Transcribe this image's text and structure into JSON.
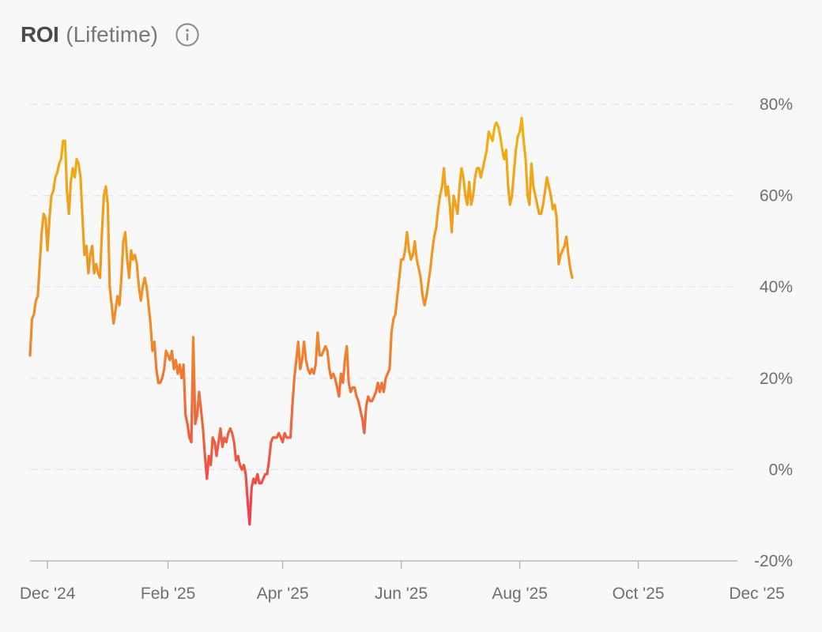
{
  "header": {
    "title": "ROI",
    "subtitle": "(Lifetime)",
    "info_icon": "info-circle-icon"
  },
  "colors": {
    "background": "#f8f8f8",
    "gridline": "#e2e2e4",
    "axis": "#b9b9bd",
    "line_high": "#f0b40f",
    "line_mid": "#ee8a2c",
    "line_low": "#f03c50"
  },
  "chart_data": {
    "type": "line",
    "title": "ROI",
    "subtitle": "(Lifetime)",
    "xlabel": "",
    "ylabel": "",
    "y_axis_side": "right",
    "ylim": [
      -20,
      80
    ],
    "yticks": [
      "80%",
      "60%",
      "40%",
      "20%",
      "0%",
      "-20%"
    ],
    "ytick_values": [
      80,
      60,
      40,
      20,
      0,
      -20
    ],
    "xlim": [
      "2024-11-22",
      "2025-11-21"
    ],
    "xticks": [
      "Dec '24",
      "Feb '25",
      "Apr '25",
      "Jun '25",
      "Aug '25",
      "Oct '25",
      "Dec '25"
    ],
    "xtick_dates": [
      "2024-12-01",
      "2025-02-01",
      "2025-04-01",
      "2025-06-01",
      "2025-08-01",
      "2025-10-01",
      "2025-12-01"
    ],
    "grid": true,
    "legend": "none",
    "series": [
      {
        "values": [
          [
            "2024-11-22",
            25
          ],
          [
            "2024-11-23",
            33
          ],
          [
            "2024-11-24",
            34
          ],
          [
            "2024-11-25",
            37
          ],
          [
            "2024-11-26",
            38
          ],
          [
            "2024-11-27",
            45
          ],
          [
            "2024-11-28",
            52
          ],
          [
            "2024-11-29",
            56
          ],
          [
            "2024-11-30",
            55
          ],
          [
            "2024-12-01",
            48
          ],
          [
            "2024-12-02",
            55
          ],
          [
            "2024-12-03",
            60
          ],
          [
            "2024-12-04",
            61
          ],
          [
            "2024-12-05",
            64
          ],
          [
            "2024-12-06",
            65
          ],
          [
            "2024-12-07",
            67
          ],
          [
            "2024-12-08",
            68
          ],
          [
            "2024-12-09",
            72
          ],
          [
            "2024-12-10",
            72
          ],
          [
            "2024-12-11",
            61
          ],
          [
            "2024-12-12",
            56
          ],
          [
            "2024-12-13",
            63
          ],
          [
            "2024-12-14",
            66
          ],
          [
            "2024-12-15",
            64
          ],
          [
            "2024-12-16",
            68
          ],
          [
            "2024-12-17",
            67
          ],
          [
            "2024-12-18",
            64
          ],
          [
            "2024-12-19",
            55
          ],
          [
            "2024-12-20",
            47
          ],
          [
            "2024-12-21",
            49
          ],
          [
            "2024-12-22",
            43
          ],
          [
            "2024-12-23",
            47
          ],
          [
            "2024-12-24",
            49
          ],
          [
            "2024-12-25",
            43
          ],
          [
            "2024-12-26",
            45
          ],
          [
            "2024-12-27",
            43
          ],
          [
            "2024-12-28",
            42
          ],
          [
            "2024-12-29",
            52
          ],
          [
            "2024-12-30",
            60
          ],
          [
            "2024-12-31",
            62
          ],
          [
            "2025-01-01",
            58
          ],
          [
            "2025-01-02",
            40
          ],
          [
            "2025-01-03",
            36
          ],
          [
            "2025-01-04",
            32
          ],
          [
            "2025-01-05",
            35
          ],
          [
            "2025-01-06",
            38
          ],
          [
            "2025-01-07",
            36
          ],
          [
            "2025-01-08",
            42
          ],
          [
            "2025-01-09",
            50
          ],
          [
            "2025-01-10",
            52
          ],
          [
            "2025-01-11",
            46
          ],
          [
            "2025-01-12",
            42
          ],
          [
            "2025-01-13",
            48
          ],
          [
            "2025-01-14",
            46
          ],
          [
            "2025-01-15",
            47
          ],
          [
            "2025-01-16",
            45
          ],
          [
            "2025-01-17",
            40
          ],
          [
            "2025-01-18",
            37
          ],
          [
            "2025-01-19",
            40
          ],
          [
            "2025-01-20",
            42
          ],
          [
            "2025-01-21",
            40
          ],
          [
            "2025-01-22",
            36
          ],
          [
            "2025-01-23",
            32
          ],
          [
            "2025-01-24",
            26
          ],
          [
            "2025-01-25",
            28
          ],
          [
            "2025-01-26",
            22
          ],
          [
            "2025-01-27",
            19
          ],
          [
            "2025-01-28",
            19
          ],
          [
            "2025-01-29",
            20
          ],
          [
            "2025-01-30",
            22
          ],
          [
            "2025-01-31",
            26
          ],
          [
            "2025-02-01",
            25
          ],
          [
            "2025-02-02",
            24
          ],
          [
            "2025-02-03",
            26
          ],
          [
            "2025-02-04",
            22
          ],
          [
            "2025-02-05",
            24
          ],
          [
            "2025-02-06",
            21
          ],
          [
            "2025-02-07",
            23
          ],
          [
            "2025-02-08",
            20
          ],
          [
            "2025-02-09",
            23
          ],
          [
            "2025-02-10",
            12
          ],
          [
            "2025-02-11",
            10
          ],
          [
            "2025-02-12",
            7
          ],
          [
            "2025-02-13",
            6
          ],
          [
            "2025-02-14",
            29
          ],
          [
            "2025-02-15",
            10
          ],
          [
            "2025-02-16",
            12
          ],
          [
            "2025-02-17",
            17
          ],
          [
            "2025-02-18",
            13
          ],
          [
            "2025-02-19",
            9
          ],
          [
            "2025-02-20",
            3
          ],
          [
            "2025-02-21",
            -2
          ],
          [
            "2025-02-22",
            3
          ],
          [
            "2025-02-23",
            1
          ],
          [
            "2025-02-24",
            7
          ],
          [
            "2025-02-25",
            6
          ],
          [
            "2025-02-26",
            3
          ],
          [
            "2025-02-27",
            6
          ],
          [
            "2025-02-28",
            9
          ],
          [
            "2025-03-01",
            5
          ],
          [
            "2025-03-02",
            7
          ],
          [
            "2025-03-03",
            6
          ],
          [
            "2025-03-04",
            8
          ],
          [
            "2025-03-05",
            9
          ],
          [
            "2025-03-06",
            8
          ],
          [
            "2025-03-07",
            6
          ],
          [
            "2025-03-08",
            2
          ],
          [
            "2025-03-09",
            3
          ],
          [
            "2025-03-10",
            1
          ],
          [
            "2025-03-11",
            0
          ],
          [
            "2025-03-12",
            1
          ],
          [
            "2025-03-13",
            -1
          ],
          [
            "2025-03-14",
            -7
          ],
          [
            "2025-03-15",
            -12
          ],
          [
            "2025-03-16",
            -4
          ],
          [
            "2025-03-17",
            -2
          ],
          [
            "2025-03-18",
            -3
          ],
          [
            "2025-03-19",
            -1
          ],
          [
            "2025-03-20",
            -3
          ],
          [
            "2025-03-21",
            -3
          ],
          [
            "2025-03-22",
            -2
          ],
          [
            "2025-03-23",
            -1
          ],
          [
            "2025-03-24",
            -1
          ],
          [
            "2025-03-25",
            2
          ],
          [
            "2025-03-26",
            6
          ],
          [
            "2025-03-27",
            7
          ],
          [
            "2025-03-28",
            7
          ],
          [
            "2025-03-29",
            7
          ],
          [
            "2025-03-30",
            8
          ],
          [
            "2025-03-31",
            7
          ],
          [
            "2025-04-01",
            6
          ],
          [
            "2025-04-02",
            8
          ],
          [
            "2025-04-03",
            7
          ],
          [
            "2025-04-04",
            7
          ],
          [
            "2025-04-05",
            7
          ],
          [
            "2025-04-06",
            14
          ],
          [
            "2025-04-07",
            20
          ],
          [
            "2025-04-08",
            24
          ],
          [
            "2025-04-09",
            28
          ],
          [
            "2025-04-10",
            22
          ],
          [
            "2025-04-11",
            24
          ],
          [
            "2025-04-12",
            28
          ],
          [
            "2025-04-13",
            24
          ],
          [
            "2025-04-14",
            22
          ],
          [
            "2025-04-15",
            21
          ],
          [
            "2025-04-16",
            22
          ],
          [
            "2025-04-17",
            21
          ],
          [
            "2025-04-18",
            23
          ],
          [
            "2025-04-19",
            30
          ],
          [
            "2025-04-20",
            25
          ],
          [
            "2025-04-21",
            25
          ],
          [
            "2025-04-22",
            26
          ],
          [
            "2025-04-23",
            27
          ],
          [
            "2025-04-24",
            26
          ],
          [
            "2025-04-25",
            22
          ],
          [
            "2025-04-26",
            20
          ],
          [
            "2025-04-27",
            21
          ],
          [
            "2025-04-28",
            20
          ],
          [
            "2025-04-29",
            18
          ],
          [
            "2025-04-30",
            16
          ],
          [
            "2025-05-01",
            21
          ],
          [
            "2025-05-02",
            19
          ],
          [
            "2025-05-03",
            24
          ],
          [
            "2025-05-04",
            27
          ],
          [
            "2025-05-05",
            19
          ],
          [
            "2025-05-06",
            17
          ],
          [
            "2025-05-07",
            18
          ],
          [
            "2025-05-08",
            18
          ],
          [
            "2025-05-09",
            16
          ],
          [
            "2025-05-10",
            15
          ],
          [
            "2025-05-11",
            13
          ],
          [
            "2025-05-12",
            11
          ],
          [
            "2025-05-13",
            8
          ],
          [
            "2025-05-14",
            14
          ],
          [
            "2025-05-15",
            16
          ],
          [
            "2025-05-16",
            15
          ],
          [
            "2025-05-17",
            15
          ],
          [
            "2025-05-18",
            16
          ],
          [
            "2025-05-19",
            17
          ],
          [
            "2025-05-20",
            19
          ],
          [
            "2025-05-21",
            17
          ],
          [
            "2025-05-22",
            19
          ],
          [
            "2025-05-23",
            17
          ],
          [
            "2025-05-24",
            20
          ],
          [
            "2025-05-25",
            21
          ],
          [
            "2025-05-26",
            22
          ],
          [
            "2025-05-27",
            30
          ],
          [
            "2025-05-28",
            33
          ],
          [
            "2025-05-29",
            34
          ],
          [
            "2025-05-30",
            38
          ],
          [
            "2025-05-31",
            42
          ],
          [
            "2025-06-01",
            46
          ],
          [
            "2025-06-02",
            46
          ],
          [
            "2025-06-03",
            48
          ],
          [
            "2025-06-04",
            52
          ],
          [
            "2025-06-05",
            48
          ],
          [
            "2025-06-06",
            46
          ],
          [
            "2025-06-07",
            47
          ],
          [
            "2025-06-08",
            50
          ],
          [
            "2025-06-09",
            46
          ],
          [
            "2025-06-10",
            44
          ],
          [
            "2025-06-11",
            42
          ],
          [
            "2025-06-12",
            38
          ],
          [
            "2025-06-13",
            36
          ],
          [
            "2025-06-14",
            38
          ],
          [
            "2025-06-15",
            41
          ],
          [
            "2025-06-16",
            44
          ],
          [
            "2025-06-17",
            48
          ],
          [
            "2025-06-18",
            51
          ],
          [
            "2025-06-19",
            53
          ],
          [
            "2025-06-20",
            57
          ],
          [
            "2025-06-21",
            60
          ],
          [
            "2025-06-22",
            62
          ],
          [
            "2025-06-23",
            66
          ],
          [
            "2025-06-24",
            60
          ],
          [
            "2025-06-25",
            62
          ],
          [
            "2025-06-26",
            58
          ],
          [
            "2025-06-27",
            52
          ],
          [
            "2025-06-28",
            60
          ],
          [
            "2025-06-29",
            58
          ],
          [
            "2025-06-30",
            56
          ],
          [
            "2025-07-01",
            62
          ],
          [
            "2025-07-02",
            66
          ],
          [
            "2025-07-03",
            64
          ],
          [
            "2025-07-04",
            60
          ],
          [
            "2025-07-05",
            58
          ],
          [
            "2025-07-06",
            63
          ],
          [
            "2025-07-07",
            58
          ],
          [
            "2025-07-08",
            60
          ],
          [
            "2025-07-09",
            64
          ],
          [
            "2025-07-10",
            66
          ],
          [
            "2025-07-11",
            66
          ],
          [
            "2025-07-12",
            64
          ],
          [
            "2025-07-13",
            66
          ],
          [
            "2025-07-14",
            68
          ],
          [
            "2025-07-15",
            70
          ],
          [
            "2025-07-16",
            74
          ],
          [
            "2025-07-17",
            73
          ],
          [
            "2025-07-18",
            72
          ],
          [
            "2025-07-19",
            75
          ],
          [
            "2025-07-20",
            76
          ],
          [
            "2025-07-21",
            75
          ],
          [
            "2025-07-22",
            73
          ],
          [
            "2025-07-23",
            70
          ],
          [
            "2025-07-24",
            68
          ],
          [
            "2025-07-25",
            70
          ],
          [
            "2025-07-26",
            62
          ],
          [
            "2025-07-27",
            58
          ],
          [
            "2025-07-28",
            60
          ],
          [
            "2025-07-29",
            65
          ],
          [
            "2025-07-30",
            70
          ],
          [
            "2025-07-31",
            73
          ],
          [
            "2025-08-01",
            74
          ],
          [
            "2025-08-02",
            77
          ],
          [
            "2025-08-03",
            72
          ],
          [
            "2025-08-04",
            68
          ],
          [
            "2025-08-05",
            60
          ],
          [
            "2025-08-06",
            58
          ],
          [
            "2025-08-07",
            67
          ],
          [
            "2025-08-08",
            62
          ],
          [
            "2025-08-09",
            60
          ],
          [
            "2025-08-10",
            58
          ],
          [
            "2025-08-11",
            56
          ],
          [
            "2025-08-12",
            56
          ],
          [
            "2025-08-13",
            58
          ],
          [
            "2025-08-14",
            61
          ],
          [
            "2025-08-15",
            64
          ],
          [
            "2025-08-16",
            62
          ],
          [
            "2025-08-17",
            60
          ],
          [
            "2025-08-18",
            57
          ],
          [
            "2025-08-19",
            58
          ],
          [
            "2025-08-20",
            55
          ],
          [
            "2025-08-21",
            45
          ],
          [
            "2025-08-22",
            47
          ],
          [
            "2025-08-23",
            48
          ],
          [
            "2025-08-24",
            49
          ],
          [
            "2025-08-25",
            51
          ],
          [
            "2025-08-26",
            47
          ],
          [
            "2025-08-27",
            44
          ],
          [
            "2025-08-28",
            42
          ]
        ]
      }
    ]
  }
}
